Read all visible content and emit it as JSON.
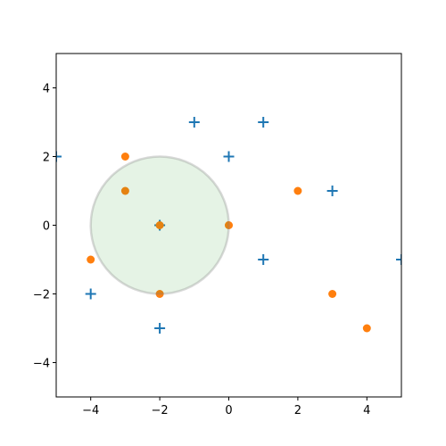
{
  "chart_data": {
    "type": "scatter",
    "xlim": [
      -5,
      5
    ],
    "ylim": [
      -5,
      5
    ],
    "xticks": [
      {
        "value": -4,
        "label": "−4"
      },
      {
        "value": -2,
        "label": "−2"
      },
      0,
      2,
      4
    ],
    "yticks": [
      {
        "value": -4,
        "label": "−4"
      },
      {
        "value": -2,
        "label": "−2"
      },
      0,
      2,
      4
    ],
    "series": [
      {
        "color": "#1f77b4",
        "marker": "plus",
        "x": [
          -5,
          -1,
          1,
          0,
          3,
          -2,
          1,
          5,
          -4,
          -2
        ],
        "values": [
          2,
          3,
          3,
          2,
          1,
          0,
          -1,
          -1,
          -2,
          -3
        ]
      },
      {
        "color": "#ff7f0e",
        "marker": "circle",
        "x": [
          -3,
          -3,
          2,
          -2,
          0,
          -4,
          -2,
          3,
          4
        ],
        "values": [
          2,
          1,
          1,
          0,
          0,
          -1,
          -2,
          -2,
          -3
        ]
      }
    ],
    "circle": {
      "center": [
        -2,
        0
      ],
      "radius": 2,
      "fill": "#2ca02c",
      "edge": "#808080"
    }
  }
}
